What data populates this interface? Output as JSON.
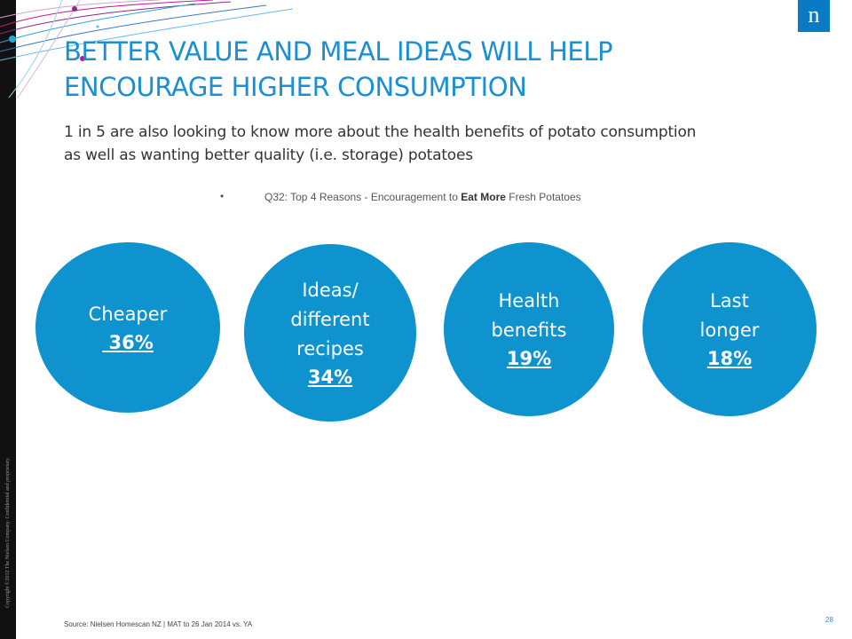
{
  "slide": {
    "title_line1": "BETTER VALUE AND MEAL IDEAS WILL HELP",
    "title_line2": "ENCOURAGE HIGHER CONSUMPTION",
    "subtitle_line1": "1 in 5 are also looking to know more about the health benefits of potato consumption",
    "subtitle_line2": "as well as wanting better quality (i.e. storage) potatoes",
    "question": {
      "bullet": "•",
      "prefix": "Q32: Top 4 Reasons - Encouragement to ",
      "emphasis": "Eat More",
      "suffix": " Fresh Potatoes"
    },
    "source": "Source: Nielsen Homescan NZ | MAT to 26 Jan 2014 vs. YA",
    "page_number": "28",
    "copyright": "Copyright ©2012 The Nielsen Company. Confidential and proprietary."
  },
  "logo": {
    "letter": "n",
    "color": "#0a7ac4"
  },
  "reasons": [
    {
      "label": "Cheaper",
      "percent": " 36%"
    },
    {
      "label": "Ideas/\ndifferent\nrecipes",
      "percent": "34%"
    },
    {
      "label": "Health\nbenefits",
      "percent": "19%"
    },
    {
      "label": "Last\nlonger",
      "percent": "18%"
    }
  ],
  "colors": {
    "accent": "#1a8fd1",
    "circle": "#0f93cf",
    "left_bar": "#111111"
  }
}
